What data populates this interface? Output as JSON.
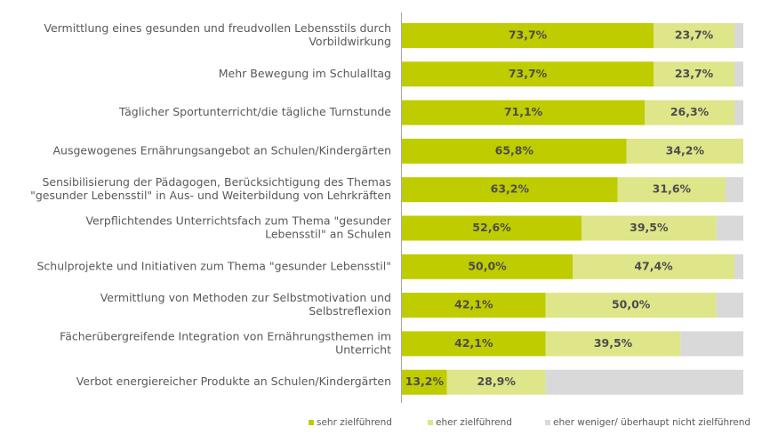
{
  "chart_data": {
    "type": "bar",
    "orientation": "horizontal",
    "stacked": true,
    "xlim": [
      0,
      100
    ],
    "grid": false,
    "legend_position": "bottom",
    "categories": [
      [
        "Vermittlung eines gesunden und freudvollen Lebensstils durch",
        "Vorbildwirkung"
      ],
      [
        "Mehr Bewegung im Schulalltag"
      ],
      [
        "Täglicher Sportunterricht/die tägliche Turnstunde"
      ],
      [
        "Ausgewogenes Ernährungsangebot an Schulen/Kindergärten"
      ],
      [
        "Sensibilisierung der Pädagogen, Berücksichtigung des Themas",
        "\"gesunder Lebensstil\" in Aus- und Weiterbildung von Lehrkräften"
      ],
      [
        "Verpflichtendes Unterrichtsfach zum Thema \"gesunder",
        "Lebensstil\" an Schulen"
      ],
      [
        "Schulprojekte und Initiativen zum Thema \"gesunder Lebensstil\""
      ],
      [
        "Vermittlung von Methoden zur Selbstmotivation und",
        "Selbstreflexion"
      ],
      [
        "Fächerübergreifende Integration von Ernährungsthemen im",
        "Unterricht"
      ],
      [
        "Verbot energiereicher Produkte an Schulen/Kindergärten"
      ]
    ],
    "series": [
      {
        "name": "sehr zielführend",
        "color": "#bfcc00",
        "values": [
          73.7,
          73.7,
          71.1,
          65.8,
          63.2,
          52.6,
          50.0,
          42.1,
          42.1,
          13.2
        ],
        "labels": [
          "73,7%",
          "73,7%",
          "71,1%",
          "65,8%",
          "63,2%",
          "52,6%",
          "50,0%",
          "42,1%",
          "42,1%",
          "13,2%"
        ]
      },
      {
        "name": "eher zielführend",
        "color": "#dfe589",
        "values": [
          23.7,
          23.7,
          26.3,
          34.2,
          31.6,
          39.5,
          47.4,
          50.0,
          39.5,
          28.9
        ],
        "labels": [
          "23,7%",
          "23,7%",
          "26,3%",
          "34,2%",
          "31,6%",
          "39,5%",
          "47,4%",
          "50,0%",
          "39,5%",
          "28,9%"
        ]
      },
      {
        "name": "eher weniger/ überhaupt nicht zielführend",
        "color": "#d9d9d9",
        "values": [
          2.6,
          2.6,
          2.6,
          0.0,
          5.2,
          7.9,
          2.6,
          7.9,
          18.4,
          57.9
        ],
        "labels": [
          "",
          "",
          "",
          "",
          "",
          "",
          "",
          "",
          "",
          ""
        ]
      }
    ]
  }
}
